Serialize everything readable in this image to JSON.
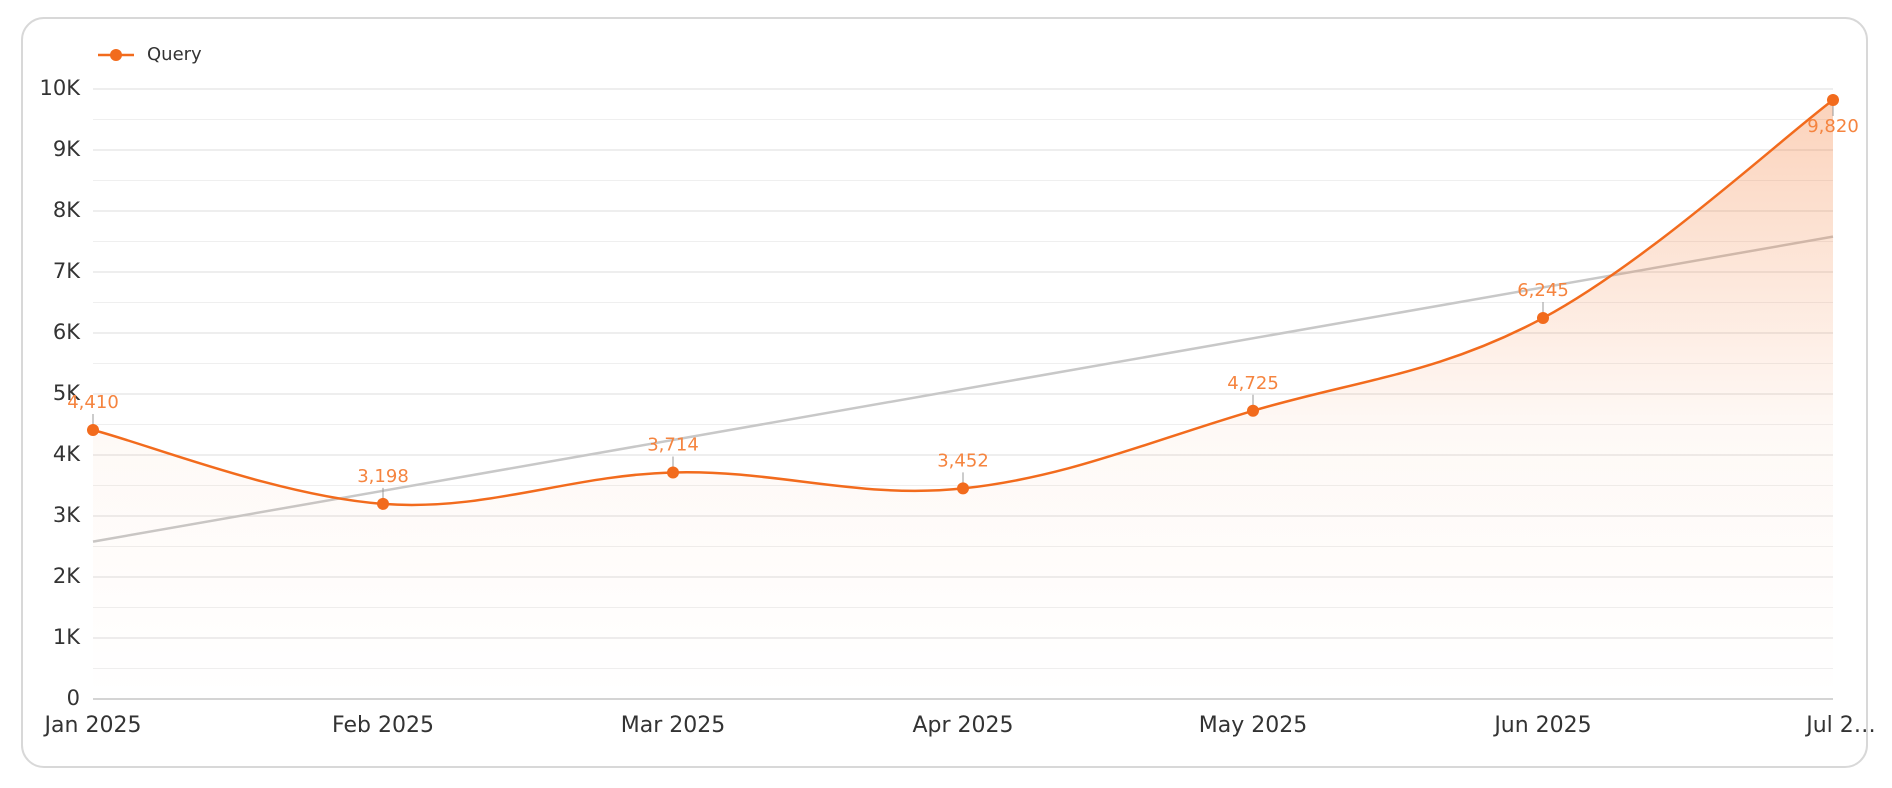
{
  "chart_data": {
    "type": "line",
    "categories": [
      "Jan 2025",
      "Feb 2025",
      "Mar 2025",
      "Apr 2025",
      "May 2025",
      "Jun 2025",
      "Jul 2…"
    ],
    "series": [
      {
        "name": "Query",
        "color": "#f26b1d",
        "values": [
          4410,
          3198,
          3714,
          3452,
          4725,
          6245,
          9820
        ],
        "value_labels": [
          "4,410",
          "3,198",
          "3,714",
          "3,452",
          "4,725",
          "6,245",
          "9,820"
        ]
      }
    ],
    "trend": {
      "color": "#c8c8c8",
      "values": [
        2580,
        7580
      ]
    },
    "ylim": [
      0,
      10000
    ],
    "yticks": [
      0,
      {
        "value": 1000,
        "label": "1K"
      },
      {
        "value": 2000,
        "label": "2K"
      },
      {
        "value": 3000,
        "label": "3K"
      },
      {
        "value": 4000,
        "label": "4K"
      },
      {
        "value": 5000,
        "label": "5K"
      },
      {
        "value": 6000,
        "label": "6K"
      },
      {
        "value": 7000,
        "label": "7K"
      },
      {
        "value": 8000,
        "label": "8K"
      },
      {
        "value": 9000,
        "label": "9K"
      },
      {
        "value": 10000,
        "label": "10K"
      }
    ],
    "minor_yticks": [
      500,
      1500,
      2500,
      3500,
      4500,
      5500,
      6500,
      7500,
      8500,
      9500
    ],
    "grid": true,
    "legend": "top-left"
  }
}
